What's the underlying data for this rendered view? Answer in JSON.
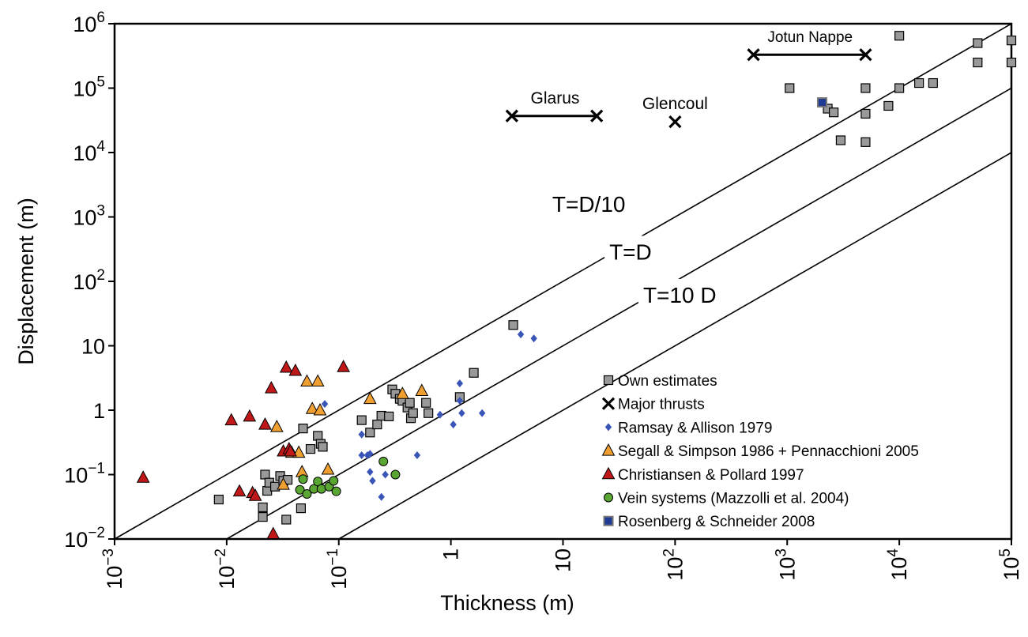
{
  "chart_data": {
    "type": "scatter",
    "title": "",
    "xlabel": "Thickness (m)",
    "ylabel": "Displacement (m)",
    "xscale": "log",
    "yscale": "log",
    "xlim": [
      0.001,
      100000
    ],
    "ylim": [
      0.01,
      1000000
    ],
    "x_ticks": [
      {
        "value": 0.001,
        "base": "10",
        "exp": "−3"
      },
      {
        "value": 0.01,
        "base": "10",
        "exp": "−2"
      },
      {
        "value": 0.1,
        "base": "10",
        "exp": "−1"
      },
      {
        "value": 1,
        "base": "1",
        "exp": ""
      },
      {
        "value": 10,
        "base": "10",
        "exp": ""
      },
      {
        "value": 100,
        "base": "10",
        "exp": "2"
      },
      {
        "value": 1000,
        "base": "10",
        "exp": "3"
      },
      {
        "value": 10000,
        "base": "10",
        "exp": "4"
      },
      {
        "value": 100000,
        "base": "10",
        "exp": "5"
      }
    ],
    "y_ticks": [
      {
        "value": 0.01,
        "base": "10",
        "exp": "−2"
      },
      {
        "value": 0.1,
        "base": "10",
        "exp": "−1"
      },
      {
        "value": 1,
        "base": "1",
        "exp": ""
      },
      {
        "value": 10,
        "base": "10",
        "exp": ""
      },
      {
        "value": 100,
        "base": "10",
        "exp": "2"
      },
      {
        "value": 1000,
        "base": "10",
        "exp": "3"
      },
      {
        "value": 10000,
        "base": "10",
        "exp": "4"
      },
      {
        "value": 100000,
        "base": "10",
        "exp": "5"
      },
      {
        "value": 1000000,
        "base": "10",
        "exp": "6"
      }
    ],
    "reference_lines": [
      {
        "label": "T=D/10",
        "ratio_d_over_t": 10,
        "label_at": [
          17,
          1600
        ]
      },
      {
        "label": "T=D",
        "ratio_d_over_t": 1,
        "label_at": [
          40,
          290
        ]
      },
      {
        "label": "T=10 D",
        "ratio_d_over_t": 0.1,
        "label_at": [
          110,
          62
        ]
      }
    ],
    "thrusts": [
      {
        "label": "Glarus",
        "x_range": [
          3.5,
          20
        ],
        "y": 37000,
        "label_at": [
          8.5,
          70000
        ]
      },
      {
        "label": "Glencoul",
        "x": 100,
        "y": 30000,
        "label_at": [
          100,
          58000
        ]
      },
      {
        "label": "Jotun Nappe",
        "x_range": [
          500,
          5000
        ],
        "y": 330000,
        "label_at": [
          1600,
          640000
        ]
      }
    ],
    "series": [
      {
        "name": "Own estimates",
        "marker": "square",
        "color": "#999999",
        "points": [
          [
            0.0085,
            0.041
          ],
          [
            0.021,
            0.022
          ],
          [
            0.021,
            0.031
          ],
          [
            0.022,
            0.1
          ],
          [
            0.023,
            0.056
          ],
          [
            0.024,
            0.075
          ],
          [
            0.027,
            0.065
          ],
          [
            0.03,
            0.095
          ],
          [
            0.032,
            0.08
          ],
          [
            0.035,
            0.083
          ],
          [
            0.034,
            0.02
          ],
          [
            0.046,
            0.03
          ],
          [
            0.048,
            0.52
          ],
          [
            0.056,
            0.25
          ],
          [
            0.065,
            0.4
          ],
          [
            0.069,
            0.3
          ],
          [
            0.072,
            0.27
          ],
          [
            0.16,
            0.7
          ],
          [
            0.19,
            0.45
          ],
          [
            0.24,
            0.82
          ],
          [
            0.22,
            0.6
          ],
          [
            0.28,
            0.8
          ],
          [
            0.3,
            2.1
          ],
          [
            0.32,
            1.8
          ],
          [
            0.35,
            1.5
          ],
          [
            0.37,
            1.4
          ],
          [
            0.41,
            1.1
          ],
          [
            0.43,
            1.3
          ],
          [
            0.44,
            0.75
          ],
          [
            0.46,
            0.9
          ],
          [
            0.6,
            1.3
          ],
          [
            0.63,
            0.9
          ],
          [
            1.2,
            1.6
          ],
          [
            1.6,
            3.8
          ],
          [
            3.6,
            21
          ],
          [
            1050,
            100000
          ],
          [
            2050,
            60000
          ],
          [
            2300,
            48000
          ],
          [
            2600,
            42000
          ],
          [
            3000,
            15500
          ],
          [
            5000,
            100000
          ],
          [
            5000,
            40000
          ],
          [
            5000,
            14500
          ],
          [
            8000,
            53000
          ],
          [
            10000,
            650000
          ],
          [
            10000,
            100000
          ],
          [
            15000,
            120000
          ],
          [
            20000,
            120000
          ],
          [
            50000,
            500000
          ],
          [
            50000,
            250000
          ],
          [
            100000,
            550000
          ],
          [
            100000,
            250000
          ]
        ]
      },
      {
        "name": "Major thrusts",
        "marker": "x",
        "color": "#000000",
        "points": [
          [
            3.5,
            37000
          ],
          [
            20,
            37000
          ],
          [
            100,
            30000
          ],
          [
            500,
            330000
          ],
          [
            5000,
            330000
          ]
        ]
      },
      {
        "name": "Ramsay & Allison 1979",
        "marker": "diamond",
        "color": "#3a55b8",
        "points": [
          [
            0.075,
            1.25
          ],
          [
            0.16,
            0.42
          ],
          [
            0.16,
            0.2
          ],
          [
            0.18,
            0.2
          ],
          [
            0.19,
            0.11
          ],
          [
            0.2,
            0.08
          ],
          [
            0.19,
            0.21
          ],
          [
            0.24,
            0.045
          ],
          [
            0.26,
            0.1
          ],
          [
            0.5,
            0.2
          ],
          [
            0.8,
            0.85
          ],
          [
            1.05,
            0.6
          ],
          [
            1.2,
            2.6
          ],
          [
            1.2,
            1.4
          ],
          [
            1.25,
            0.9
          ],
          [
            1.9,
            0.9
          ],
          [
            4.2,
            15
          ],
          [
            5.5,
            13
          ]
        ]
      },
      {
        "name": "Segall & Simpson 1986 + Pennacchioni 2005",
        "marker": "triangle",
        "color": "#f0a030",
        "points": [
          [
            0.028,
            0.55
          ],
          [
            0.032,
            0.07
          ],
          [
            0.038,
            0.22
          ],
          [
            0.044,
            0.22
          ],
          [
            0.047,
            0.11
          ],
          [
            0.052,
            2.8
          ],
          [
            0.058,
            1.05
          ],
          [
            0.065,
            2.8
          ],
          [
            0.068,
            1.0
          ],
          [
            0.08,
            0.12
          ],
          [
            0.19,
            1.5
          ],
          [
            0.37,
            1.8
          ],
          [
            0.55,
            2.0
          ]
        ]
      },
      {
        "name": "Christiansen & Pollard 1997",
        "marker": "triangle",
        "color": "#c01818",
        "points": [
          [
            0.0018,
            0.09
          ],
          [
            0.011,
            0.7
          ],
          [
            0.013,
            0.055
          ],
          [
            0.016,
            0.8
          ],
          [
            0.017,
            0.052
          ],
          [
            0.018,
            0.047
          ],
          [
            0.022,
            0.6
          ],
          [
            0.025,
            2.2
          ],
          [
            0.026,
            0.012
          ],
          [
            0.032,
            0.23
          ],
          [
            0.034,
            4.6
          ],
          [
            0.036,
            0.25
          ],
          [
            0.037,
            0.23
          ],
          [
            0.041,
            4.1
          ],
          [
            0.11,
            4.7
          ]
        ]
      },
      {
        "name": "Vein systems (Mazzolli et al. 2004)",
        "marker": "circle",
        "color": "#5aa632",
        "points": [
          [
            0.045,
            0.058
          ],
          [
            0.048,
            0.085
          ],
          [
            0.052,
            0.05
          ],
          [
            0.06,
            0.06
          ],
          [
            0.065,
            0.078
          ],
          [
            0.07,
            0.06
          ],
          [
            0.082,
            0.065
          ],
          [
            0.09,
            0.08
          ],
          [
            0.095,
            0.055
          ],
          [
            0.25,
            0.16
          ],
          [
            0.32,
            0.1
          ]
        ]
      },
      {
        "name": "Rosenberg & Schneider 2008",
        "marker": "square-blue",
        "color": "#1f3a93",
        "points": [
          [
            2050,
            60000
          ]
        ]
      }
    ],
    "legend": {
      "position": "bottom-right",
      "entries": [
        "Own estimates",
        "Major thrusts",
        "Ramsay & Allison 1979",
        "Segall & Simpson 1986 + Pennacchioni 2005",
        "Christiansen & Pollard 1997",
        "Vein systems (Mazzolli et al. 2004)",
        "Rosenberg & Schneider 2008"
      ]
    }
  }
}
